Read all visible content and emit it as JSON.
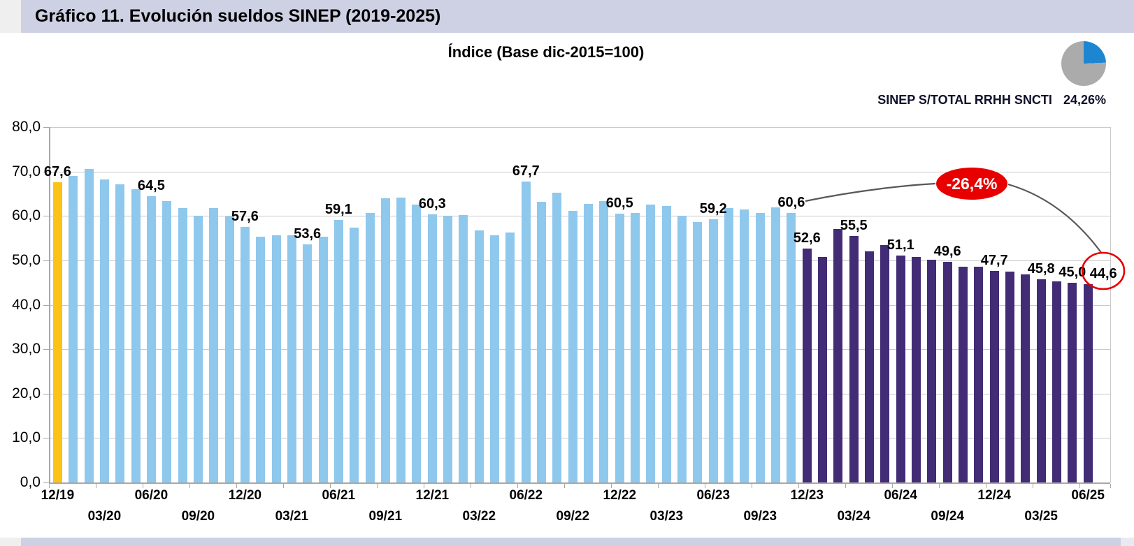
{
  "header": {
    "title": "Gráfico 11. Evolución sueldos SINEP (2019-2025)"
  },
  "pie_legend": {
    "label": "SINEP S/TOTAL RRHH SNCTI",
    "value": "24,26%",
    "percent": 24.26,
    "slice_color": "#1E86D1",
    "rest_color": "#ABABAB"
  },
  "annotations": {
    "drop_badge": "-26,4%",
    "circled_value": "44,6"
  },
  "chart_data": {
    "type": "bar",
    "title": "Índice (Base dic-2015=100)",
    "xlabel": "",
    "ylabel": "",
    "ylim": [
      0,
      80
    ],
    "ytick_step": 10,
    "ytick_labels": [
      "0,0",
      "10,0",
      "20,0",
      "30,0",
      "40,0",
      "50,0",
      "60,0",
      "70,0",
      "80,0"
    ],
    "grid": true,
    "legend_position": "none",
    "categories": [
      "12/19",
      "01/20",
      "02/20",
      "03/20",
      "04/20",
      "05/20",
      "06/20",
      "07/20",
      "08/20",
      "09/20",
      "10/20",
      "11/20",
      "12/20",
      "01/21",
      "02/21",
      "03/21",
      "04/21",
      "05/21",
      "06/21",
      "07/21",
      "08/21",
      "09/21",
      "10/21",
      "11/21",
      "12/21",
      "01/22",
      "02/22",
      "03/22",
      "04/22",
      "05/22",
      "06/22",
      "07/22",
      "08/22",
      "09/22",
      "10/22",
      "11/22",
      "12/22",
      "01/23",
      "02/23",
      "03/23",
      "04/23",
      "05/23",
      "06/23",
      "07/23",
      "08/23",
      "09/23",
      "10/23",
      "11/23",
      "12/23",
      "01/24",
      "02/24",
      "03/24",
      "04/24",
      "05/24",
      "06/24",
      "07/24",
      "08/24",
      "09/24",
      "10/24",
      "11/24",
      "12/24",
      "01/25",
      "02/25",
      "03/25",
      "04/25",
      "05/25",
      "06/25"
    ],
    "values": [
      67.6,
      69.0,
      70.5,
      68.2,
      67.1,
      66.0,
      64.5,
      63.3,
      61.7,
      60.0,
      61.8,
      59.9,
      57.6,
      55.4,
      55.6,
      55.6,
      53.6,
      55.4,
      59.1,
      57.4,
      60.6,
      64.0,
      64.1,
      62.5,
      60.3,
      60.0,
      60.2,
      56.7,
      55.6,
      56.3,
      67.7,
      63.2,
      65.2,
      61.1,
      62.7,
      63.4,
      60.5,
      60.6,
      62.5,
      62.3,
      60.0,
      58.7,
      59.2,
      61.7,
      61.4,
      60.6,
      62.0,
      60.6,
      52.6,
      50.7,
      57.0,
      55.5,
      52.1,
      53.4,
      51.1,
      50.8,
      50.2,
      49.6,
      48.6,
      48.5,
      47.7,
      47.4,
      46.9,
      45.8,
      45.2,
      45.0,
      44.6
    ],
    "color_segments": [
      {
        "from": 0,
        "to": 0,
        "color": "#FCC215"
      },
      {
        "from": 1,
        "to": 47,
        "color": "#8FC8ED"
      },
      {
        "from": 48,
        "to": 66,
        "color": "#422C76"
      }
    ],
    "value_labels": [
      {
        "index": 0,
        "text": "67,6"
      },
      {
        "index": 6,
        "text": "64,5"
      },
      {
        "index": 12,
        "text": "57,6"
      },
      {
        "index": 16,
        "text": "53,6"
      },
      {
        "index": 18,
        "text": "59,1"
      },
      {
        "index": 24,
        "text": "60,3"
      },
      {
        "index": 30,
        "text": "67,7"
      },
      {
        "index": 36,
        "text": "60,5"
      },
      {
        "index": 42,
        "text": "59,2"
      },
      {
        "index": 47,
        "text": "60,6"
      },
      {
        "index": 48,
        "text": "52,6"
      },
      {
        "index": 51,
        "text": "55,5"
      },
      {
        "index": 54,
        "text": "51,1"
      },
      {
        "index": 57,
        "text": "49,6"
      },
      {
        "index": 60,
        "text": "47,7"
      },
      {
        "index": 63,
        "text": "45,8"
      },
      {
        "index": 65,
        "text": "45,0"
      },
      {
        "index": 66,
        "text": "44,6",
        "dx": 22
      }
    ],
    "x_axis_row1_indices": [
      0,
      6,
      12,
      18,
      24,
      30,
      36,
      42,
      48,
      54,
      60,
      66
    ],
    "x_axis_row2_indices": [
      3,
      9,
      15,
      21,
      27,
      33,
      39,
      45,
      51,
      57,
      63
    ]
  }
}
